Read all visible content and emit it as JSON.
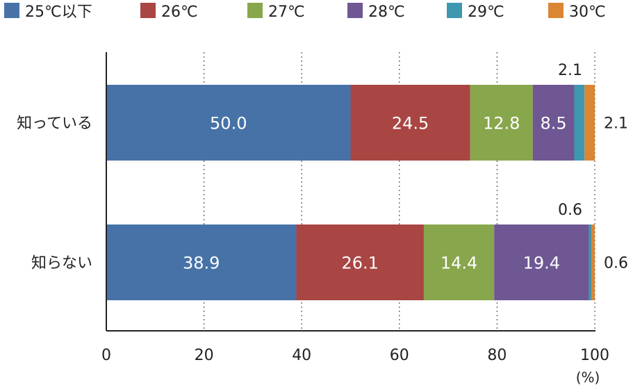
{
  "chart_data": {
    "type": "bar",
    "orientation": "horizontal",
    "stacked": true,
    "categories": [
      "知っている",
      "知らない"
    ],
    "series": [
      {
        "name": "25℃以下",
        "color": "#4672A8",
        "values": [
          50.0,
          38.9
        ]
      },
      {
        "name": "26℃",
        "color": "#A94543",
        "values": [
          24.5,
          26.1
        ]
      },
      {
        "name": "27℃",
        "color": "#88A64C",
        "values": [
          12.8,
          14.4
        ]
      },
      {
        "name": "28℃",
        "color": "#6E5793",
        "values": [
          8.5,
          19.4
        ]
      },
      {
        "name": "29℃",
        "color": "#3E98B0",
        "values": [
          2.1,
          0.6
        ]
      },
      {
        "name": "30℃",
        "color": "#DA8634",
        "values": [
          2.1,
          0.6
        ]
      }
    ],
    "data_labels": [
      [
        "50.0",
        "24.5",
        "12.8",
        "8.5",
        "",
        ""
      ],
      [
        "38.9",
        "26.1",
        "14.4",
        "19.4",
        "",
        ""
      ]
    ],
    "outside_labels": [
      {
        "above": "2.1",
        "right": "2.1"
      },
      {
        "above": "0.6",
        "right": "0.6"
      }
    ],
    "xticks": [
      "0",
      "20",
      "40",
      "60",
      "80",
      "100"
    ],
    "xlim": [
      0,
      100
    ],
    "xunit": "(%)",
    "grid": "vertical dotted",
    "legend_position": "top"
  }
}
